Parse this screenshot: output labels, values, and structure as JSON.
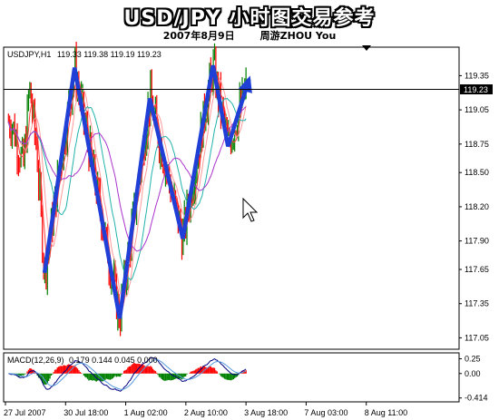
{
  "title": "USD/JPY 小时图交易参考",
  "subtitle_date": "2007年8月9日",
  "subtitle_author": "周游ZHOU You",
  "colors": {
    "up_candle": "#008000",
    "down_candle": "#ff0000",
    "wave": "#1f3fd6",
    "ma_fast": "#ff4040",
    "ma_mid": "#ff9999",
    "ma_slow": "#20b2aa",
    "ma_slower": "#aa33cc",
    "macd_line": "#000080",
    "signal_line": "#5599dd"
  },
  "chart_data": [
    {
      "type": "candlestick",
      "symbol_label": "USDJPY,H1",
      "ohlc_label": "119.33 119.38 119.19 119.23",
      "current_price_label": "119.23",
      "current_price": 119.23,
      "ylim": [
        116.95,
        119.6
      ],
      "y_ticks": [
        "119.35",
        "119.05",
        "118.75",
        "118.50",
        "118.20",
        "117.90",
        "117.65",
        "117.35",
        "117.05"
      ],
      "x_ticks": [
        "27 Jul 2007",
        "30 Jul 18:00",
        "1 Aug 02:00",
        "2 Aug 10:00",
        "3 Aug 18:00",
        "7 Aug 03:00",
        "8 Aug 11:00"
      ],
      "wave_path": [
        [
          0.25,
          117.62
        ],
        [
          0.75,
          119.42
        ],
        [
          1.5,
          117.22
        ],
        [
          2.0,
          119.15
        ],
        [
          2.55,
          117.92
        ],
        [
          3.05,
          119.44
        ],
        [
          3.3,
          118.73
        ],
        [
          3.65,
          119.32
        ]
      ],
      "wave_end_arrow": true,
      "grid": false
    },
    {
      "type": "macd",
      "label": "MACD(12,26,9)",
      "values_label": "0.179 0.144 0.045 0.000",
      "ylim": [
        -0.48,
        0.35
      ],
      "y_ticks": [
        "0.25",
        "0.00",
        "-0.414"
      ]
    }
  ]
}
